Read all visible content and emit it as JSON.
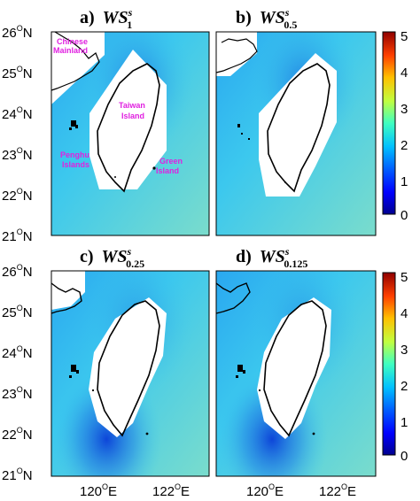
{
  "panels": [
    {
      "label": "a)",
      "ws": "WS",
      "sup": "s",
      "sub": "1"
    },
    {
      "label": "b)",
      "ws": "WS",
      "sup": "s",
      "sub": "0.5"
    },
    {
      "label": "c)",
      "ws": "WS",
      "sup": "s",
      "sub": "0.25"
    },
    {
      "label": "d)",
      "ws": "WS",
      "sup": "s",
      "sub": "0.125"
    }
  ],
  "y_ticks": [
    {
      "num": "26",
      "deg": "O",
      "hem": "N"
    },
    {
      "num": "25",
      "deg": "O",
      "hem": "N"
    },
    {
      "num": "24",
      "deg": "O",
      "hem": "N"
    },
    {
      "num": "23",
      "deg": "O",
      "hem": "N"
    },
    {
      "num": "22",
      "deg": "O",
      "hem": "N"
    },
    {
      "num": "21",
      "deg": "O",
      "hem": "N"
    }
  ],
  "x_ticks": [
    {
      "num": "120",
      "deg": "O",
      "hem": "E"
    },
    {
      "num": "122",
      "deg": "O",
      "hem": "E"
    }
  ],
  "colorbar": {
    "min": 0,
    "max": 5,
    "ticks": [
      "5",
      "4",
      "3",
      "2",
      "1",
      "0"
    ],
    "colors": [
      "#00008f",
      "#0000ff",
      "#0080ff",
      "#00ffff",
      "#80ff80",
      "#ffff00",
      "#ff8000",
      "#ff0000",
      "#800000"
    ]
  },
  "annotations": {
    "chinese": "Chinese",
    "mainland": "Mainland",
    "taiwan": "Taiwan",
    "island": "Island",
    "penghu": "Penghu",
    "penghu_islands": "Islands",
    "green": "Green",
    "green_island": "Island"
  },
  "colors": {
    "sea": "#3cc8ee",
    "sea_light": "#62d4e6",
    "sea_dark": "#1a6ae0",
    "land": "#ffffff",
    "annotation": "#e020e0"
  }
}
